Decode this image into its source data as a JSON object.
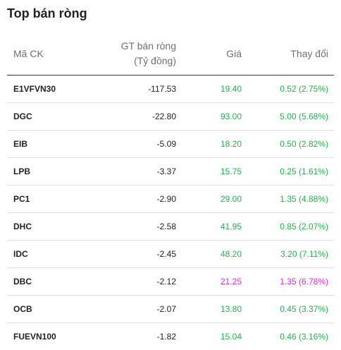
{
  "title": "Top bán ròng",
  "colors": {
    "up": "#22b14c",
    "ceiling": "#d92bd4",
    "text": "#222222",
    "header_text": "#707070"
  },
  "columns": {
    "symbol": "Mã CK",
    "net_value_line1": "GT bán ròng",
    "net_value_line2": "(Tỷ đồng)",
    "price": "Giá",
    "change": "Thay đổi"
  },
  "rows": [
    {
      "symbol": "E1VFVN30",
      "net_value": "-117.53",
      "price": "19.40",
      "change": "0.52 (2.75%)",
      "tone": "green"
    },
    {
      "symbol": "DGC",
      "net_value": "-22.80",
      "price": "93.00",
      "change": "5.00 (5.68%)",
      "tone": "green"
    },
    {
      "symbol": "EIB",
      "net_value": "-5.09",
      "price": "18.20",
      "change": "0.50 (2.82%)",
      "tone": "green"
    },
    {
      "symbol": "LPB",
      "net_value": "-3.37",
      "price": "15.75",
      "change": "0.25 (1.61%)",
      "tone": "green"
    },
    {
      "symbol": "PC1",
      "net_value": "-2.90",
      "price": "29.00",
      "change": "1.35 (4.88%)",
      "tone": "green"
    },
    {
      "symbol": "DHC",
      "net_value": "-2.58",
      "price": "41.95",
      "change": "0.85 (2.07%)",
      "tone": "green"
    },
    {
      "symbol": "IDC",
      "net_value": "-2.45",
      "price": "48.20",
      "change": "3.20 (7.11%)",
      "tone": "green"
    },
    {
      "symbol": "DBC",
      "net_value": "-2.12",
      "price": "21.25",
      "change": "1.35 (6.78%)",
      "tone": "purple"
    },
    {
      "symbol": "OCB",
      "net_value": "-2.07",
      "price": "13.80",
      "change": "0.45 (3.37%)",
      "tone": "green"
    },
    {
      "symbol": "FUEVN100",
      "net_value": "-1.82",
      "price": "15.04",
      "change": "0.46 (3.16%)",
      "tone": "green"
    }
  ]
}
